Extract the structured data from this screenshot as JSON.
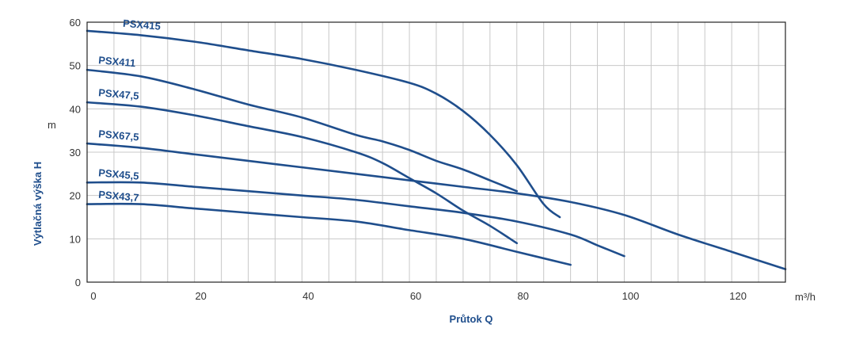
{
  "chart_data": {
    "type": "line",
    "xlabel": "Průtok Q",
    "ylabel": "Výtlačná výška H",
    "xunit": "m³/h",
    "yunit": "m",
    "xlim": [
      0,
      130
    ],
    "ylim": [
      0,
      60
    ],
    "xticks": [
      0,
      20,
      40,
      60,
      80,
      100,
      120
    ],
    "yticks": [
      0,
      10,
      20,
      30,
      40,
      50,
      60
    ],
    "grid": true,
    "line_color": "#1f4e8c",
    "series": [
      {
        "name": "PSX415",
        "x": [
          0,
          10,
          20,
          30,
          40,
          50,
          60,
          65,
          70,
          75,
          80,
          85,
          88
        ],
        "y": [
          58,
          57,
          55.5,
          53.5,
          51.5,
          49,
          46,
          43.5,
          39.5,
          34,
          27,
          18,
          15
        ]
      },
      {
        "name": "PSX411",
        "x": [
          0,
          10,
          20,
          30,
          40,
          50,
          55,
          60,
          65,
          70,
          75,
          80
        ],
        "y": [
          49,
          47.5,
          44.5,
          41,
          38,
          34,
          32.5,
          30.5,
          28,
          26,
          23.5,
          21
        ]
      },
      {
        "name": "PSX47,5",
        "x": [
          0,
          10,
          20,
          30,
          40,
          50,
          55,
          60,
          65,
          70,
          75,
          80
        ],
        "y": [
          41.5,
          40.5,
          38.5,
          36,
          33.5,
          30,
          27.5,
          24,
          20.5,
          16.5,
          13,
          9
        ]
      },
      {
        "name": "PSX67,5",
        "x": [
          0,
          10,
          20,
          30,
          40,
          50,
          60,
          70,
          80,
          90,
          100,
          110,
          120,
          130
        ],
        "y": [
          32,
          31,
          29.5,
          28,
          26.5,
          25,
          23.5,
          22,
          20.5,
          18.5,
          15.5,
          11,
          7,
          3
        ]
      },
      {
        "name": "PSX45,5",
        "x": [
          0,
          10,
          20,
          30,
          40,
          50,
          60,
          70,
          80,
          90,
          95,
          100
        ],
        "y": [
          23,
          23,
          22,
          21,
          20,
          19,
          17.5,
          16,
          14,
          11,
          8.5,
          6
        ]
      },
      {
        "name": "PSX43,7",
        "x": [
          0,
          10,
          20,
          30,
          40,
          50,
          60,
          70,
          80,
          90
        ],
        "y": [
          18,
          18,
          17,
          16,
          15,
          14,
          12,
          10,
          7,
          4
        ]
      }
    ]
  }
}
